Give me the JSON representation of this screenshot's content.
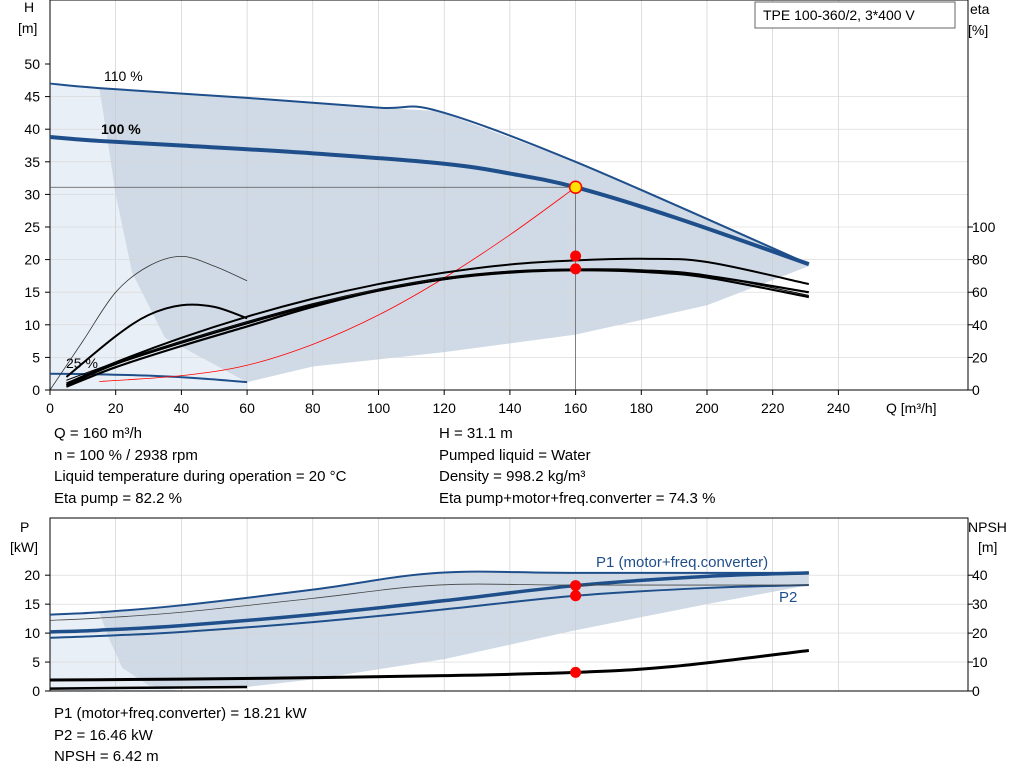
{
  "top_chart": {
    "y_label": "H",
    "y_unit": "[m]",
    "y2_label": "eta",
    "y2_unit": "[%]",
    "x_label": "Q [m³/h]",
    "title_box": "TPE 100-360/2, 3*400 V",
    "curve_labels": [
      "110 %",
      "100 %",
      "25 %"
    ]
  },
  "bottom_chart": {
    "y_label": "P",
    "y_unit": "[kW]",
    "y2_label": "NPSH",
    "y2_unit": "[m]",
    "series_labels": [
      "P1 (motor+freq.converter)",
      "P2"
    ]
  },
  "info_top": {
    "left": [
      "Q = 160 m³/h",
      "n = 100 % / 2938 rpm",
      "Liquid temperature during operation = 20 °C",
      "Eta pump = 82.2 %"
    ],
    "right": [
      "H = 31.1 m",
      "Pumped liquid = Water",
      "Density = 998.2 kg/m³",
      "Eta pump+motor+freq.converter = 74.3 %"
    ]
  },
  "info_bottom": [
    "P1 (motor+freq.converter) = 18.21 kW",
    "P2 = 16.46 kW",
    "NPSH = 6.42 m"
  ],
  "colors": {
    "curve_blue": "#1f4f8b",
    "region_fill": "#cfdae6",
    "light_fill": "#e9eff6",
    "point_red": "#ff0000",
    "point_yellow": "#ffe000"
  },
  "chart_data": [
    {
      "type": "line",
      "title": "TPE 100-360/2, 3*400 V",
      "xlabel": "Q [m³/h]",
      "ylabel": "H [m]",
      "y2label": "eta [%]",
      "xlim": [
        0,
        240
      ],
      "ylim": [
        0,
        50
      ],
      "y2lim": [
        0,
        100
      ],
      "x_ticks": [
        0,
        20,
        40,
        60,
        80,
        100,
        120,
        140,
        160,
        180,
        200,
        220,
        240
      ],
      "y_ticks": [
        0,
        5,
        10,
        15,
        20,
        25,
        30,
        35,
        40,
        45,
        50
      ],
      "y2_ticks": [
        0,
        20,
        40,
        60,
        80,
        100
      ],
      "series": [
        {
          "name": "110 %",
          "axis": "H",
          "x": [
            0,
            15,
            60,
            100,
            118,
            160,
            231
          ],
          "y": [
            47,
            46.3,
            44.8,
            43.3,
            42.8,
            35,
            19.3
          ]
        },
        {
          "name": "100 %",
          "axis": "H",
          "x": [
            0,
            15,
            40,
            80,
            120,
            140,
            160,
            190,
            231
          ],
          "y": [
            38.8,
            38.2,
            37.5,
            36.3,
            34.7,
            33.2,
            31.1,
            26.5,
            19.3
          ]
        },
        {
          "name": "25 %",
          "axis": "H",
          "x": [
            0,
            15,
            30,
            45,
            60
          ],
          "y": [
            2.5,
            2.4,
            2.2,
            1.8,
            1.2
          ]
        },
        {
          "axis": "H",
          "x": [
            15,
            40,
            60,
            80,
            100,
            120,
            140,
            160
          ],
          "y": [
            1.3,
            2.2,
            3.8,
            7,
            11.5,
            17.2,
            23.8,
            31.1
          ]
        },
        {
          "axis": "eta",
          "x": [
            5,
            20,
            40,
            60,
            80,
            100,
            120,
            140,
            160,
            180,
            200,
            231
          ],
          "y": [
            4,
            17,
            32,
            45,
            56,
            65,
            72,
            77,
            79.5,
            80.5,
            78.5,
            65
          ]
        },
        {
          "axis": "eta",
          "x": [
            5,
            20,
            40,
            60,
            80,
            100,
            120,
            140,
            160,
            180,
            200,
            231
          ],
          "y": [
            6,
            17,
            30,
            42,
            53,
            62,
            69,
            73,
            74.3,
            73.8,
            70.5,
            58
          ]
        },
        {
          "axis": "eta",
          "x": [
            5,
            20,
            40,
            60,
            80,
            100,
            120,
            140,
            160,
            180,
            200,
            231
          ],
          "y": [
            3,
            16,
            29,
            41,
            52,
            61,
            68,
            72.5,
            73.5,
            72.5,
            69,
            57
          ]
        },
        {
          "axis": "eta",
          "x": [
            5,
            20,
            40,
            60,
            80,
            100,
            120,
            140,
            160,
            180,
            200,
            231
          ],
          "y": [
            2,
            14,
            27,
            39,
            51,
            61,
            68,
            72,
            73.5,
            73,
            70,
            60
          ]
        },
        {
          "axis": "eta",
          "x": [
            0,
            10,
            20,
            30,
            40,
            50,
            60
          ],
          "y": [
            0,
            30,
            60,
            76,
            82,
            76,
            67
          ]
        },
        {
          "axis": "eta",
          "x": [
            5,
            20,
            30,
            40,
            50,
            60
          ],
          "y": [
            8,
            33,
            46,
            52,
            51,
            44
          ]
        }
      ],
      "points": [
        {
          "x": 160,
          "y": 31.1,
          "axis": "H"
        },
        {
          "x": 160,
          "y": 82.2,
          "axis": "eta"
        },
        {
          "x": 160,
          "y": 74.3,
          "axis": "eta"
        }
      ],
      "annotations": [
        "110 %",
        "100 %",
        "25 %"
      ]
    },
    {
      "type": "line",
      "xlabel": "Q [m³/h]",
      "ylabel": "P [kW]",
      "y2label": "NPSH [m]",
      "xlim": [
        0,
        240
      ],
      "ylim": [
        0,
        24
      ],
      "y2lim": [
        0,
        48
      ],
      "y_ticks": [
        0,
        5,
        10,
        15,
        20
      ],
      "y2_ticks": [
        0,
        10,
        20,
        30,
        40
      ],
      "series": [
        {
          "name": "P1 (motor+freq.converter)",
          "axis": "P",
          "x": [
            0,
            15,
            40,
            80,
            120,
            160,
            200,
            231
          ],
          "y": [
            10.2,
            10.5,
            11.3,
            13.2,
            15.6,
            18.21,
            19.8,
            20.4
          ]
        },
        {
          "name": "P2",
          "axis": "P",
          "x": [
            0,
            15,
            40,
            80,
            120,
            160,
            200,
            231
          ],
          "y": [
            9.2,
            9.5,
            10.2,
            11.9,
            14.1,
            16.46,
            17.8,
            18.3
          ]
        },
        {
          "axis": "P",
          "x": [
            0,
            15,
            40,
            80,
            118,
            160,
            231
          ],
          "y": [
            13.2,
            13.6,
            14.8,
            17.5,
            20.4,
            20.4,
            20.4
          ]
        },
        {
          "axis": "P",
          "x": [
            0,
            15,
            40,
            80,
            118,
            160,
            231
          ],
          "y": [
            12.2,
            12.6,
            13.6,
            16,
            18.3,
            18.3,
            18.3
          ]
        },
        {
          "axis": "P",
          "x": [
            0,
            15,
            40,
            60
          ],
          "y": [
            0.4,
            0.5,
            0.6,
            0.7
          ]
        },
        {
          "axis": "NPSH",
          "x": [
            0,
            15,
            40,
            80,
            120,
            160,
            190,
            231
          ],
          "y": [
            3.8,
            3.9,
            4.1,
            4.6,
            5.3,
            6.42,
            8.5,
            14
          ]
        }
      ],
      "points": [
        {
          "x": 160,
          "y": 18.21,
          "axis": "P"
        },
        {
          "x": 160,
          "y": 16.46,
          "axis": "P"
        },
        {
          "x": 160,
          "y": 6.42,
          "axis": "NPSH"
        }
      ]
    }
  ]
}
